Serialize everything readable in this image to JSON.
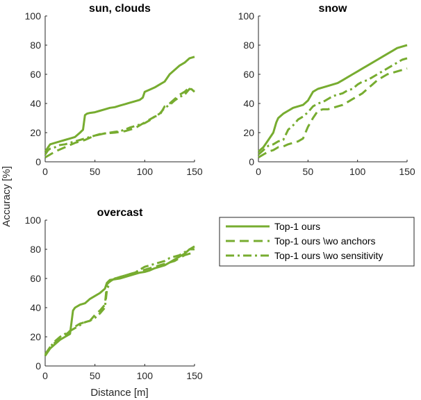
{
  "colors": {
    "series": "#77ac30",
    "axis": "#262626"
  },
  "figure": {
    "ylabel": "Accuracy [%]",
    "xlabel": "Distance [m]"
  },
  "legend": {
    "entries": [
      {
        "label": "Top-1 ours",
        "dash": "solid"
      },
      {
        "label": "Top-1 ours \\wo anchors",
        "dash": "dashed"
      },
      {
        "label": "Top-1 ours \\wo sensitivity",
        "dash": "dashdot"
      }
    ]
  },
  "chart_data": [
    {
      "type": "line",
      "title": "sun, clouds",
      "xlim": [
        0,
        150
      ],
      "ylim": [
        0,
        100
      ],
      "xticks": [
        0,
        50,
        100,
        150
      ],
      "yticks": [
        0,
        20,
        40,
        60,
        80,
        100
      ],
      "series": [
        {
          "name": "Top-1 ours",
          "x": [
            0,
            3,
            5,
            10,
            15,
            20,
            25,
            30,
            35,
            38,
            40,
            42,
            45,
            50,
            55,
            60,
            65,
            70,
            75,
            80,
            85,
            90,
            95,
            98,
            100,
            105,
            110,
            115,
            120,
            125,
            130,
            135,
            140,
            145,
            150
          ],
          "y": [
            7,
            10,
            12,
            13,
            14,
            15,
            16,
            17,
            20,
            22,
            32,
            33,
            33.5,
            34,
            35,
            36,
            37,
            37.5,
            38.5,
            39.5,
            40.5,
            41.5,
            42.5,
            44,
            48,
            49.5,
            51,
            53,
            55,
            60,
            63,
            66,
            68,
            71,
            72
          ]
        },
        {
          "name": "Top-1 ours \\wo anchors",
          "x": [
            0,
            5,
            10,
            20,
            30,
            40,
            50,
            60,
            70,
            80,
            90,
            95,
            100,
            105,
            110,
            115,
            120,
            125,
            130,
            135,
            140,
            145,
            150
          ],
          "y": [
            3,
            5,
            7,
            10,
            13,
            15,
            18,
            19.5,
            20,
            21,
            23,
            25,
            27,
            29,
            31,
            32,
            38,
            40,
            43,
            46,
            48,
            51,
            48
          ]
        },
        {
          "name": "Top-1 ours \\wo sensitivity",
          "x": [
            0,
            3,
            5,
            10,
            15,
            20,
            25,
            30,
            35,
            40,
            45,
            50,
            55,
            60,
            65,
            70,
            75,
            80,
            85,
            90,
            95,
            100,
            105,
            110,
            115,
            120,
            125,
            130,
            135,
            140,
            145,
            150
          ],
          "y": [
            5,
            8,
            9,
            10,
            11.5,
            12,
            13,
            14,
            15,
            16,
            17,
            18,
            19,
            19.5,
            20,
            20.5,
            21,
            22,
            23.5,
            24.5,
            25.5,
            26.5,
            28.5,
            31,
            33,
            37,
            39,
            42,
            44.5,
            46,
            50,
            49
          ]
        }
      ]
    },
    {
      "type": "line",
      "title": "snow",
      "xlim": [
        0,
        150
      ],
      "ylim": [
        0,
        100
      ],
      "xticks": [
        0,
        50,
        100,
        150
      ],
      "yticks": [
        0,
        20,
        40,
        60,
        80,
        100
      ],
      "series": [
        {
          "name": "Top-1 ours",
          "x": [
            0,
            5,
            10,
            15,
            18,
            20,
            25,
            30,
            35,
            40,
            45,
            50,
            55,
            60,
            65,
            70,
            75,
            80,
            85,
            90,
            95,
            100,
            105,
            110,
            115,
            120,
            125,
            130,
            135,
            140,
            145,
            150
          ],
          "y": [
            7,
            10,
            15,
            20,
            27,
            30,
            33,
            35,
            37,
            38,
            39,
            42,
            48,
            50,
            51,
            52,
            53,
            54,
            56,
            58,
            60,
            62,
            64,
            66,
            68,
            70,
            72,
            74,
            76,
            78,
            79,
            80
          ]
        },
        {
          "name": "Top-1 ours \\wo anchors",
          "x": [
            0,
            5,
            10,
            15,
            20,
            25,
            30,
            35,
            40,
            45,
            50,
            55,
            60,
            65,
            70,
            75,
            80,
            85,
            90,
            95,
            100,
            105,
            110,
            115,
            120,
            125,
            130,
            135,
            140,
            145,
            150
          ],
          "y": [
            3,
            5,
            7,
            8,
            10,
            10.5,
            12,
            13,
            14,
            16,
            24,
            30,
            35,
            36,
            36,
            37,
            38,
            39,
            41,
            43,
            45,
            47,
            50,
            53,
            56,
            58,
            60,
            61,
            62,
            63,
            64
          ]
        },
        {
          "name": "Top-1 ours \\wo sensitivity",
          "x": [
            0,
            5,
            10,
            15,
            20,
            25,
            30,
            35,
            40,
            45,
            50,
            55,
            60,
            65,
            70,
            75,
            80,
            85,
            90,
            95,
            100,
            105,
            110,
            115,
            120,
            125,
            130,
            135,
            140,
            145,
            150
          ],
          "y": [
            5,
            8,
            11,
            12,
            14,
            15,
            22,
            25,
            29,
            31,
            34,
            38,
            40,
            41,
            43,
            45,
            46,
            47,
            49,
            50,
            53,
            55,
            56,
            58,
            60,
            62,
            64,
            66,
            68,
            70,
            71
          ]
        }
      ]
    },
    {
      "type": "line",
      "title": "overcast",
      "xlim": [
        0,
        150
      ],
      "ylim": [
        0,
        100
      ],
      "xticks": [
        0,
        50,
        100,
        150
      ],
      "yticks": [
        0,
        20,
        40,
        60,
        80,
        100
      ],
      "series": [
        {
          "name": "Top-1 ours",
          "x": [
            0,
            5,
            10,
            15,
            20,
            25,
            28,
            30,
            35,
            40,
            45,
            50,
            55,
            60,
            62,
            65,
            70,
            75,
            80,
            85,
            90,
            95,
            100,
            105,
            110,
            115,
            120,
            125,
            130,
            135,
            140,
            145,
            150
          ],
          "y": [
            7,
            12,
            15,
            18,
            20,
            22,
            38,
            40,
            42,
            43,
            46,
            48,
            50,
            53,
            57,
            59,
            59.5,
            60,
            61,
            62,
            63,
            64,
            64.5,
            65.5,
            67,
            68,
            69,
            71,
            73,
            75,
            77,
            80,
            82
          ]
        },
        {
          "name": "Top-1 ours \\wo anchors",
          "x": [
            0,
            5,
            10,
            15,
            20,
            25,
            30,
            35,
            40,
            45,
            50,
            55,
            60,
            62,
            65,
            70,
            75,
            80,
            85,
            90,
            95,
            100,
            105,
            110,
            115,
            120,
            125,
            130,
            135,
            140,
            145,
            150
          ],
          "y": [
            8,
            13,
            16,
            19,
            21,
            24,
            27,
            29,
            30,
            31,
            35,
            38,
            42,
            56,
            58,
            60,
            61,
            62,
            63,
            64,
            65,
            66,
            67,
            68,
            69,
            70,
            71,
            72,
            74,
            76,
            77,
            78
          ]
        },
        {
          "name": "Top-1 ours \\wo sensitivity",
          "x": [
            0,
            5,
            10,
            15,
            20,
            25,
            30,
            35,
            40,
            45,
            50,
            55,
            60,
            62,
            65,
            70,
            75,
            80,
            85,
            90,
            95,
            100,
            105,
            110,
            115,
            120,
            125,
            130,
            135,
            140,
            145,
            150
          ],
          "y": [
            7,
            13,
            17,
            20,
            22,
            24,
            26,
            28,
            30,
            31,
            33,
            36,
            40,
            52,
            58,
            60,
            61,
            62,
            63,
            64,
            66,
            68,
            69,
            70,
            71,
            72,
            74,
            75,
            76,
            78,
            80,
            80
          ]
        }
      ]
    }
  ]
}
